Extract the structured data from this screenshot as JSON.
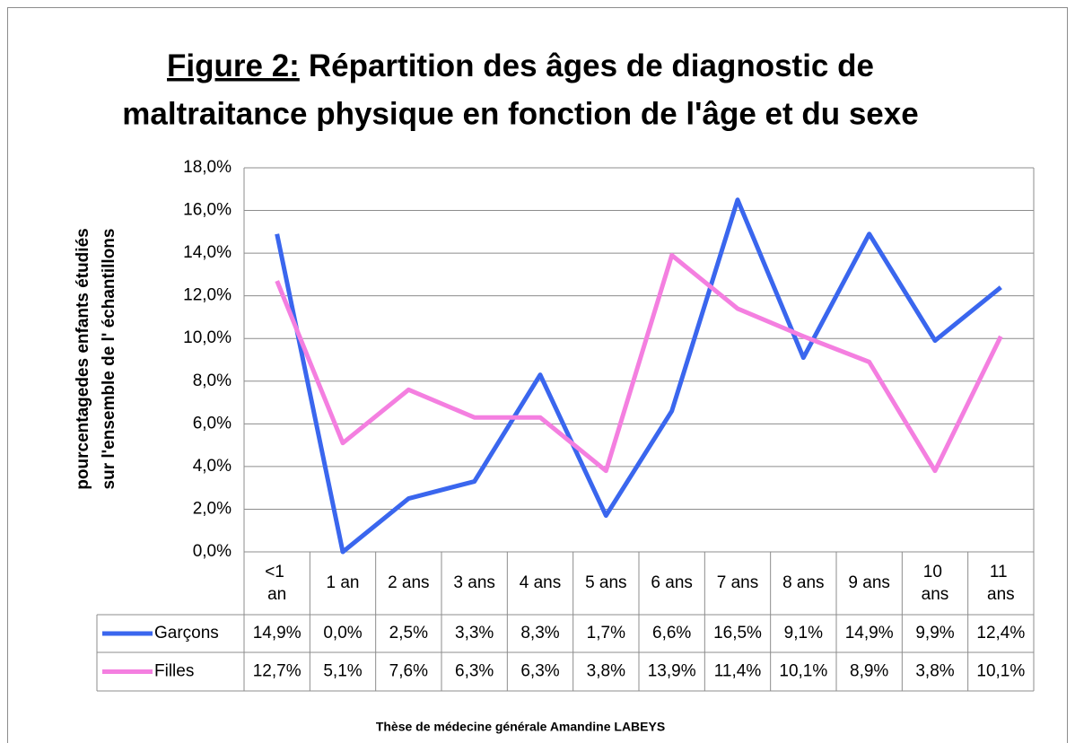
{
  "chart_data": {
    "type": "line",
    "title_prefix": "Figure 2:",
    "title": [
      "Répartition des âges de diagnostic de",
      "maltraitance physique en fonction de l'âge et du sexe"
    ],
    "ylabel": [
      "pourcentagedes enfants étudiés",
      "sur l'ensemble de l' échantillons"
    ],
    "footer": "Thèse de médecine générale Amandine LABEYS",
    "categories": [
      "<1 an",
      "1 an",
      "2 ans",
      "3 ans",
      "4 ans",
      "5 ans",
      "6 ans",
      "7 ans",
      "8 ans",
      "9 ans",
      "10 ans",
      "11 ans"
    ],
    "series": [
      {
        "name": "Garçons",
        "color": "#3a66ee",
        "values": [
          14.9,
          0.0,
          2.5,
          3.3,
          8.3,
          1.7,
          6.6,
          16.5,
          9.1,
          14.9,
          9.9,
          12.4
        ],
        "value_labels": [
          "14,9%",
          "0,0%",
          "2,5%",
          "3,3%",
          "8,3%",
          "1,7%",
          "6,6%",
          "16,5%",
          "9,1%",
          "14,9%",
          "9,9%",
          "12,4%"
        ]
      },
      {
        "name": "Filles",
        "color": "#f47fe0",
        "values": [
          12.7,
          5.1,
          7.6,
          6.3,
          6.3,
          3.8,
          13.9,
          11.4,
          10.1,
          8.9,
          3.8,
          10.1
        ],
        "value_labels": [
          "12,7%",
          "5,1%",
          "7,6%",
          "6,3%",
          "6,3%",
          "3,8%",
          "13,9%",
          "11,4%",
          "10,1%",
          "8,9%",
          "3,8%",
          "10,1%"
        ]
      }
    ],
    "ylim": [
      0,
      18
    ],
    "yticks": [
      {
        "value": 0,
        "label": "0,0%"
      },
      {
        "value": 2,
        "label": "2,0%"
      },
      {
        "value": 4,
        "label": "4,0%"
      },
      {
        "value": 6,
        "label": "6,0%"
      },
      {
        "value": 8,
        "label": "8,0%"
      },
      {
        "value": 10,
        "label": "10,0%"
      },
      {
        "value": 12,
        "label": "12,0%"
      },
      {
        "value": 14,
        "label": "14,0%"
      },
      {
        "value": 16,
        "label": "16,0%"
      },
      {
        "value": 18,
        "label": "18,0%"
      }
    ],
    "grid": true
  }
}
